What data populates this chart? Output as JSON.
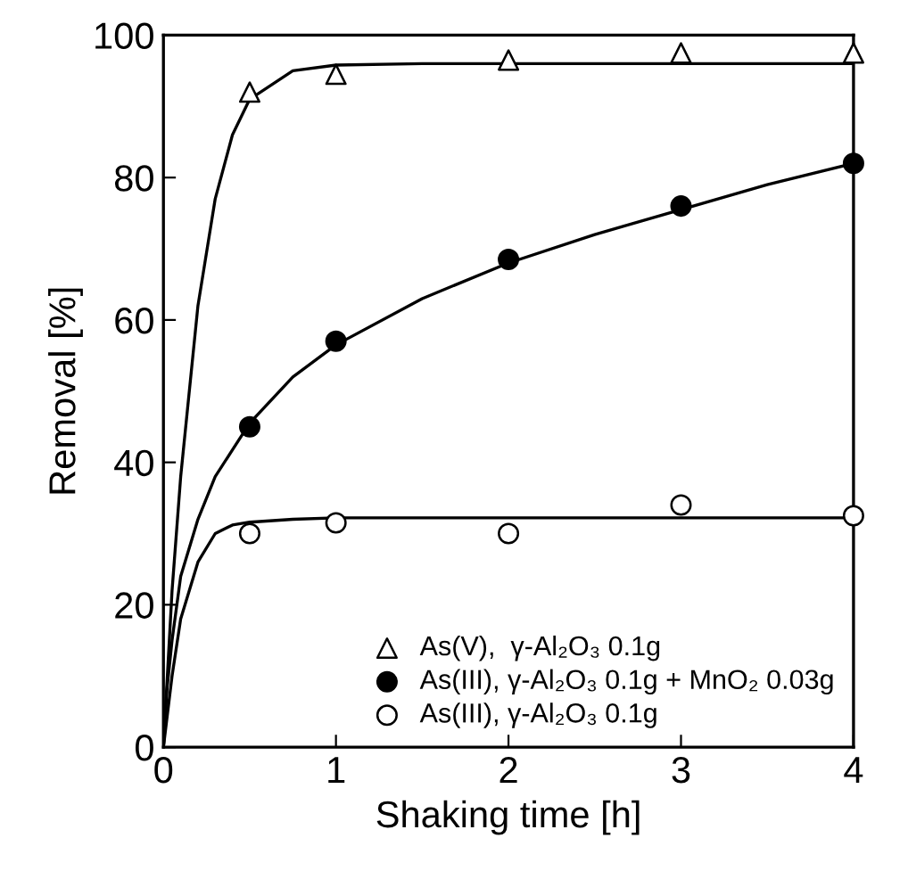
{
  "chart_data": {
    "type": "scatter",
    "xlabel": "Shaking time [h]",
    "ylabel": "Removal [%]",
    "xlim": [
      0,
      4
    ],
    "xticks": [
      0,
      1,
      2,
      3,
      4
    ],
    "ylim": [
      0,
      100
    ],
    "yticks": [
      0,
      20,
      40,
      60,
      80,
      100
    ],
    "grid": false,
    "legend": "bottom right",
    "series": [
      {
        "name": "As(V),  γ-Al₂O₃ 0.1g",
        "color": "#ffffff",
        "marker": "triangle",
        "x": [
          0.5,
          1,
          2,
          3,
          4
        ],
        "values": [
          92,
          94.5,
          96.5,
          97.5,
          97.5
        ]
      },
      {
        "name": "As(III), γ-Al₂O₃ 0.1g + MnO₂ 0.03g",
        "color": "#000000",
        "marker": "circle",
        "x": [
          0.5,
          1,
          2,
          3,
          4
        ],
        "values": [
          45,
          57,
          68.5,
          76,
          82
        ]
      },
      {
        "name": "As(III), γ-Al₂O₃ 0.1g",
        "color": "#ffffff",
        "marker": "circle",
        "x": [
          0.5,
          1,
          2,
          3,
          4
        ],
        "values": [
          30,
          31.5,
          30,
          34,
          32.5
        ]
      },
      {
        "type": "line",
        "color": "#000000",
        "marker": "none",
        "x": [
          0,
          0.05,
          0.1,
          0.2,
          0.3,
          0.4,
          0.5,
          0.75,
          1,
          1.5,
          2,
          3,
          4
        ],
        "values": [
          0,
          22,
          38,
          62,
          77,
          86,
          91,
          95,
          95.8,
          96,
          96,
          96,
          96
        ]
      },
      {
        "type": "line",
        "color": "#000000",
        "marker": "none",
        "x": [
          0,
          0.02,
          0.05,
          0.1,
          0.2,
          0.3,
          0.5,
          0.75,
          1,
          1.5,
          2,
          2.5,
          3,
          3.5,
          4
        ],
        "values": [
          0,
          8,
          15,
          24,
          32,
          38,
          45.5,
          52,
          56.5,
          63,
          68,
          72,
          75.5,
          79,
          82
        ]
      },
      {
        "type": "line",
        "color": "#000000",
        "marker": "none",
        "x": [
          0,
          0.05,
          0.1,
          0.2,
          0.3,
          0.4,
          0.5,
          0.75,
          1,
          2,
          4
        ],
        "values": [
          0,
          10,
          18,
          26,
          30,
          31.2,
          31.6,
          32,
          32.2,
          32.2,
          32.2
        ]
      }
    ]
  }
}
